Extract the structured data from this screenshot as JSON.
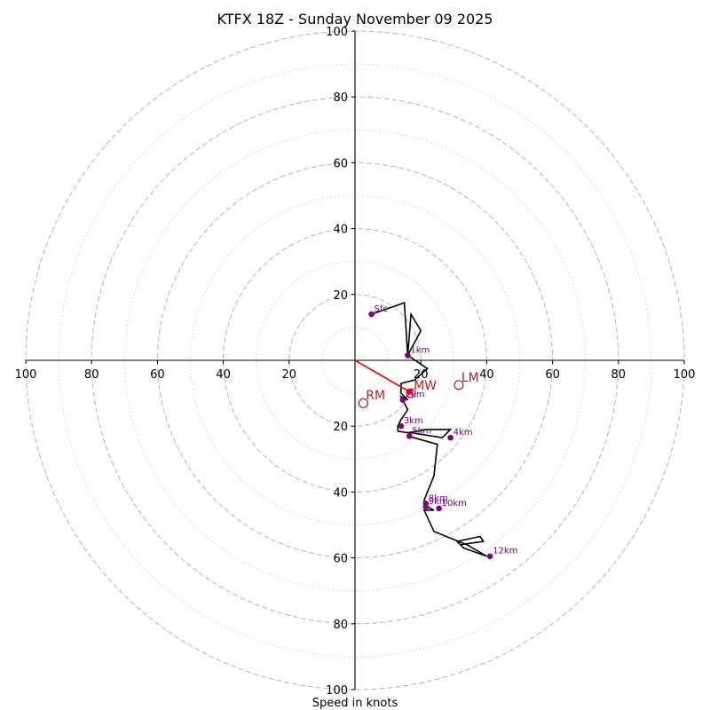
{
  "chart_data": {
    "type": "hodograph",
    "title": "KTFX 18Z - Sunday November 09 2025",
    "xlabel": "Speed in knots",
    "range": [
      -100,
      100
    ],
    "ring_major": [
      20,
      40,
      60,
      80,
      100
    ],
    "ring_minor": [
      10,
      30,
      50,
      70,
      90
    ],
    "x_ticks": [
      {
        "v": -100,
        "label": "100"
      },
      {
        "v": -80,
        "label": "80"
      },
      {
        "v": -60,
        "label": "60"
      },
      {
        "v": -40,
        "label": "40"
      },
      {
        "v": -20,
        "label": "20"
      },
      {
        "v": 20,
        "label": "20"
      },
      {
        "v": 40,
        "label": "40"
      },
      {
        "v": 60,
        "label": "60"
      },
      {
        "v": 80,
        "label": "80"
      },
      {
        "v": 100,
        "label": "100"
      }
    ],
    "y_ticks": [
      {
        "v": 100,
        "label": "100"
      },
      {
        "v": 80,
        "label": "80"
      },
      {
        "v": 60,
        "label": "60"
      },
      {
        "v": 40,
        "label": "40"
      },
      {
        "v": 20,
        "label": "20"
      },
      {
        "v": -20,
        "label": "20"
      },
      {
        "v": -40,
        "label": "40"
      },
      {
        "v": -60,
        "label": "60"
      },
      {
        "v": -80,
        "label": "80"
      },
      {
        "v": -100,
        "label": "100"
      }
    ],
    "hodograph_trace": [
      [
        5,
        14
      ],
      [
        15,
        17.5
      ],
      [
        16,
        1.5
      ],
      [
        17,
        14
      ],
      [
        20,
        9
      ],
      [
        16,
        1.5
      ],
      [
        22,
        -2.5
      ],
      [
        18,
        -6
      ],
      [
        14,
        -7
      ],
      [
        14,
        -10
      ],
      [
        16,
        -12
      ],
      [
        14,
        -11
      ],
      [
        16,
        -15
      ],
      [
        14,
        -18
      ],
      [
        13,
        -20
      ],
      [
        13,
        -21.5
      ],
      [
        16,
        -22
      ],
      [
        22,
        -21
      ],
      [
        29,
        -21
      ],
      [
        26.5,
        -23.5
      ],
      [
        17,
        -22
      ],
      [
        16,
        -23
      ],
      [
        25,
        -25.5
      ],
      [
        24,
        -35
      ],
      [
        21,
        -42.5
      ],
      [
        21,
        -44
      ],
      [
        24,
        -45.5
      ],
      [
        21,
        -45.5
      ],
      [
        24,
        -52
      ],
      [
        34,
        -56
      ],
      [
        40,
        -59.5
      ],
      [
        33,
        -57
      ],
      [
        31,
        -55
      ],
      [
        38,
        -53.5
      ],
      [
        39,
        -55
      ],
      [
        32,
        -56
      ]
    ],
    "height_markers": [
      {
        "label": "Sfc",
        "u": 5,
        "v": 14
      },
      {
        "label": "1km",
        "u": 16,
        "v": 1.5
      },
      {
        "label": "2km",
        "u": 14.5,
        "v": -12
      },
      {
        "label": "3km",
        "u": 14,
        "v": -20
      },
      {
        "label": "4km",
        "u": 29,
        "v": -23.5
      },
      {
        "label": "5km",
        "u": 16.5,
        "v": -23
      },
      {
        "label": "8km",
        "u": 21.5,
        "v": -43.5
      },
      {
        "label": "9km",
        "u": 21.5,
        "v": -44.5
      },
      {
        "label": "10km",
        "u": 25.5,
        "v": -45
      },
      {
        "label": "12km",
        "u": 41,
        "v": -59.5
      }
    ],
    "storm_motion_vector": {
      "from": [
        0,
        0
      ],
      "to": [
        16.5,
        -9.5
      ],
      "color": "#ff0000"
    },
    "motion_markers": [
      {
        "label": "RM",
        "u": 2.5,
        "v": -13
      },
      {
        "label": "MW",
        "u": 17,
        "v": -10
      },
      {
        "label": "LM",
        "u": 31.5,
        "v": -7.5
      }
    ],
    "colors": {
      "trace": "#000000",
      "height_point": "#800080",
      "motion": "#b22222",
      "vector": "#ff0000",
      "grid": "#bbbbbb"
    }
  }
}
